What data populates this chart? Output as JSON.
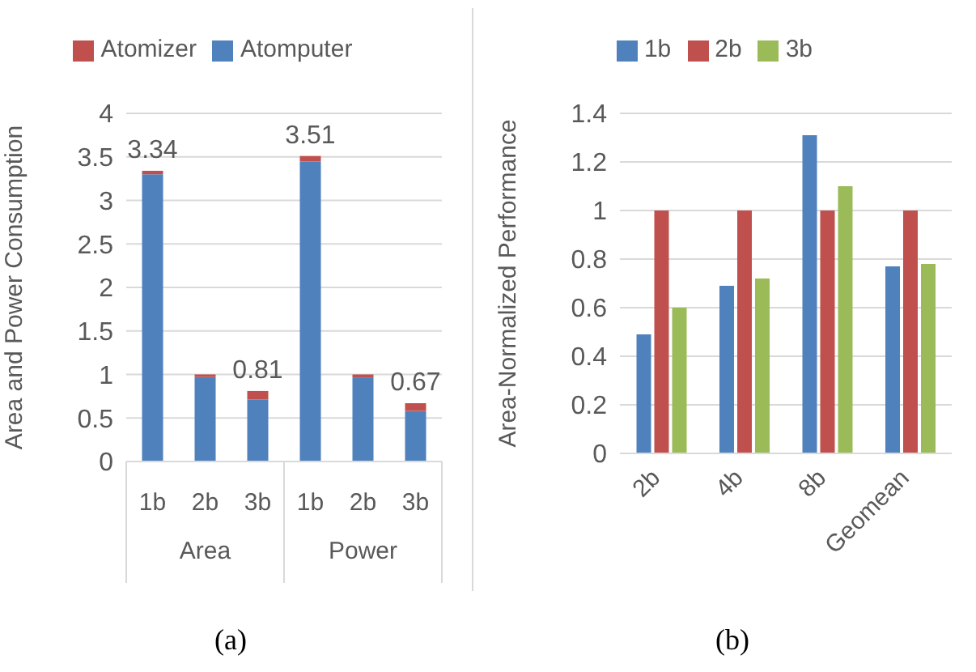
{
  "chart_data": [
    {
      "type": "bar",
      "title": "(a)",
      "ylabel": "Area and Power Consumption",
      "categories": [
        "1b",
        "2b",
        "3b",
        "1b",
        "2b",
        "3b"
      ],
      "stacked": true,
      "series": [
        {
          "name": "Atomputer",
          "color": "#4f81bd",
          "values": [
            3.3,
            0.97,
            0.71,
            3.45,
            0.96,
            0.58
          ]
        },
        {
          "name": "Atomizer",
          "color": "#c0504d",
          "values": [
            0.04,
            0.03,
            0.1,
            0.06,
            0.04,
            0.09
          ]
        }
      ],
      "totals": [
        "3.34",
        null,
        "0.81",
        "3.51",
        null,
        "0.67"
      ],
      "annotations": [
        "Area",
        "Power"
      ],
      "ylim": [
        0,
        4
      ],
      "yticks": [
        0,
        0.5,
        1,
        1.5,
        2,
        2.5,
        3,
        3.5,
        4
      ],
      "grid": "y",
      "legend": "top"
    },
    {
      "type": "bar",
      "title": "(b)",
      "ylabel": "Area-Normalized Performance",
      "categories": [
        "2b",
        "4b",
        "8b",
        "Geomean"
      ],
      "series": [
        {
          "name": "1b",
          "color": "#4f81bd",
          "values": [
            0.49,
            0.69,
            1.31,
            0.77
          ]
        },
        {
          "name": "2b",
          "color": "#c0504d",
          "values": [
            1,
            1,
            1,
            1
          ]
        },
        {
          "name": "3b",
          "color": "#9bbb59",
          "values": [
            0.6,
            0.72,
            1.1,
            0.78
          ]
        }
      ],
      "ylim": [
        0,
        1.4
      ],
      "yticks": [
        0,
        0.2,
        0.4,
        0.6,
        0.8,
        1,
        1.2,
        1.4
      ],
      "grid": "y",
      "legend": "top"
    }
  ]
}
